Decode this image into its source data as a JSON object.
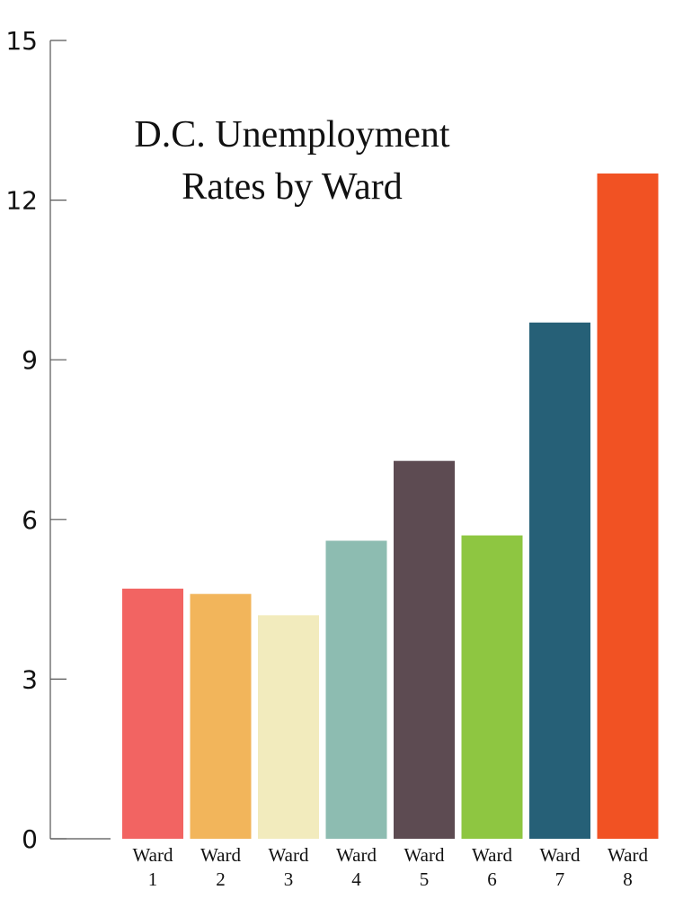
{
  "chart_data": {
    "type": "bar",
    "title_lines": [
      "D.C. Unemployment",
      "Rates by Ward"
    ],
    "categories": [
      [
        "Ward",
        "1"
      ],
      [
        "Ward",
        "2"
      ],
      [
        "Ward",
        "3"
      ],
      [
        "Ward",
        "4"
      ],
      [
        "Ward",
        "5"
      ],
      [
        "Ward",
        "6"
      ],
      [
        "Ward",
        "7"
      ],
      [
        "Ward",
        "8"
      ]
    ],
    "values": [
      4.7,
      4.6,
      4.2,
      5.6,
      7.1,
      5.7,
      9.7,
      12.5
    ],
    "colors": [
      "#f26462",
      "#f2b55b",
      "#f2ebbd",
      "#8dbcb1",
      "#5d4b52",
      "#8ec641",
      "#266077",
      "#f15223"
    ],
    "ylim": [
      0,
      15
    ],
    "yticks": [
      0,
      3,
      6,
      9,
      12,
      15
    ],
    "xlabel": "",
    "ylabel": "",
    "grid": false,
    "legend": "none"
  }
}
